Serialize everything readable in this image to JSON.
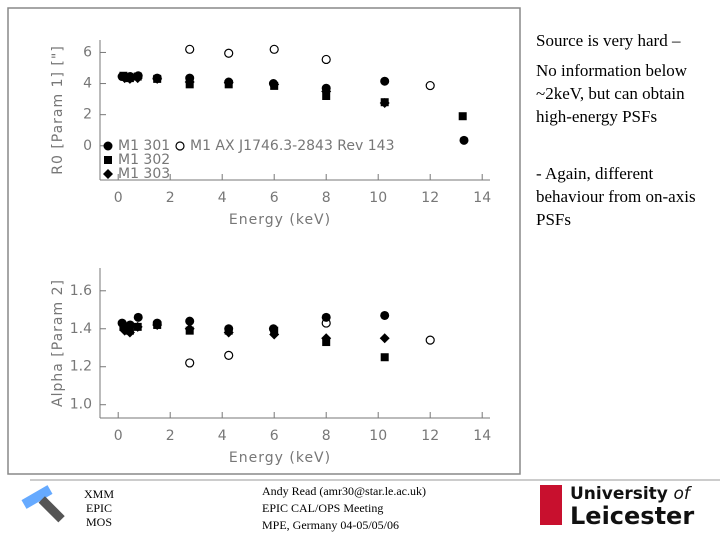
{
  "chart_data": [
    {
      "type": "scatter",
      "ylabel": "R0 [Param 1] [\"]",
      "xlabel": "Energy (keV)",
      "xlim": [
        -0.7,
        14.3
      ],
      "xticks": [
        0,
        2,
        4,
        6,
        8,
        10,
        12,
        14
      ],
      "ylim": [
        -2.2,
        6.8
      ],
      "yticks": [
        0,
        2,
        4,
        6
      ],
      "series": [
        {
          "name": "M1 301",
          "color": "#000000",
          "marker": "circle",
          "x": [
            0.15,
            0.46,
            0.77,
            1.5,
            2.75,
            4.25,
            5.97,
            8.0,
            10.25,
            13.3
          ],
          "values": [
            4.45,
            4.45,
            4.5,
            4.35,
            4.35,
            4.1,
            4.0,
            3.7,
            4.15,
            0.35
          ]
        },
        {
          "name": "M1 302",
          "color": "#000000",
          "marker": "square",
          "x": [
            0.2,
            0.45,
            0.75,
            1.5,
            2.75,
            4.25,
            6.0,
            8.0,
            10.25,
            13.25
          ],
          "values": [
            4.5,
            4.35,
            4.45,
            4.3,
            3.95,
            3.95,
            3.85,
            3.2,
            2.8,
            1.9
          ]
        },
        {
          "name": "M1 303",
          "color": "#000000",
          "marker": "diamond",
          "x": [
            0.25,
            0.45,
            0.75,
            1.5,
            2.75,
            4.25,
            6.0,
            8.0,
            10.25
          ],
          "values": [
            4.35,
            4.3,
            4.35,
            4.3,
            4.1,
            4.05,
            3.95,
            3.5,
            2.75
          ]
        },
        {
          "name": "M1 AX J1746.3-2843 Rev 143",
          "color": "#000000",
          "marker": "open-circle",
          "x": [
            2.75,
            4.25,
            6.0,
            8.0,
            12.0
          ],
          "values": [
            6.2,
            5.95,
            6.2,
            5.55,
            3.87
          ]
        }
      ]
    },
    {
      "type": "scatter",
      "ylabel": "Alpha [Param 2]",
      "xlabel": "Energy (keV)",
      "xlim": [
        -0.7,
        14.3
      ],
      "xticks": [
        0,
        2,
        4,
        6,
        8,
        10,
        12,
        14
      ],
      "ylim": [
        0.93,
        1.72
      ],
      "yticks": [
        {
          "value": 1,
          "label": "1.0"
        },
        1.2,
        1.4,
        1.6
      ],
      "series": [
        {
          "color": "#000000",
          "marker": "circle",
          "x": [
            0.15,
            0.46,
            0.77,
            1.5,
            2.75,
            4.25,
            5.97,
            8.0,
            10.25
          ],
          "values": [
            1.43,
            1.42,
            1.46,
            1.43,
            1.44,
            1.4,
            1.4,
            1.46,
            1.47
          ]
        },
        {
          "color": "#000000",
          "marker": "square",
          "x": [
            0.2,
            0.45,
            0.75,
            1.5,
            2.75,
            4.25,
            6.0,
            8.0,
            10.25
          ],
          "values": [
            1.41,
            1.39,
            1.41,
            1.42,
            1.39,
            1.39,
            1.39,
            1.33,
            1.25
          ]
        },
        {
          "color": "#000000",
          "marker": "diamond",
          "x": [
            0.25,
            0.45,
            0.75,
            1.5,
            2.75,
            4.25,
            6.0,
            8.0,
            10.25
          ],
          "values": [
            1.39,
            1.38,
            1.41,
            1.42,
            1.4,
            1.38,
            1.37,
            1.35,
            1.35
          ]
        },
        {
          "color": "#000000",
          "marker": "open-circle",
          "x": [
            2.75,
            4.25,
            8.0,
            12.0
          ],
          "values": [
            1.22,
            1.26,
            1.43,
            1.34
          ]
        }
      ]
    }
  ],
  "slide": {
    "notes": [
      "Source is very hard –",
      "No information below ~2keV, but can obtain high-energy PSFs",
      "- Again, different behaviour from on-axis PSFs"
    ],
    "footer": {
      "instrument": [
        "XMM",
        "EPIC",
        "MOS"
      ],
      "author": [
        "Andy Read (amr30@star.le.ac.uk)",
        "EPIC CAL/OPS Meeting",
        "MPE, Germany 04-05/05/06"
      ]
    },
    "logo": [
      "University",
      "of",
      "Leicester"
    ]
  }
}
